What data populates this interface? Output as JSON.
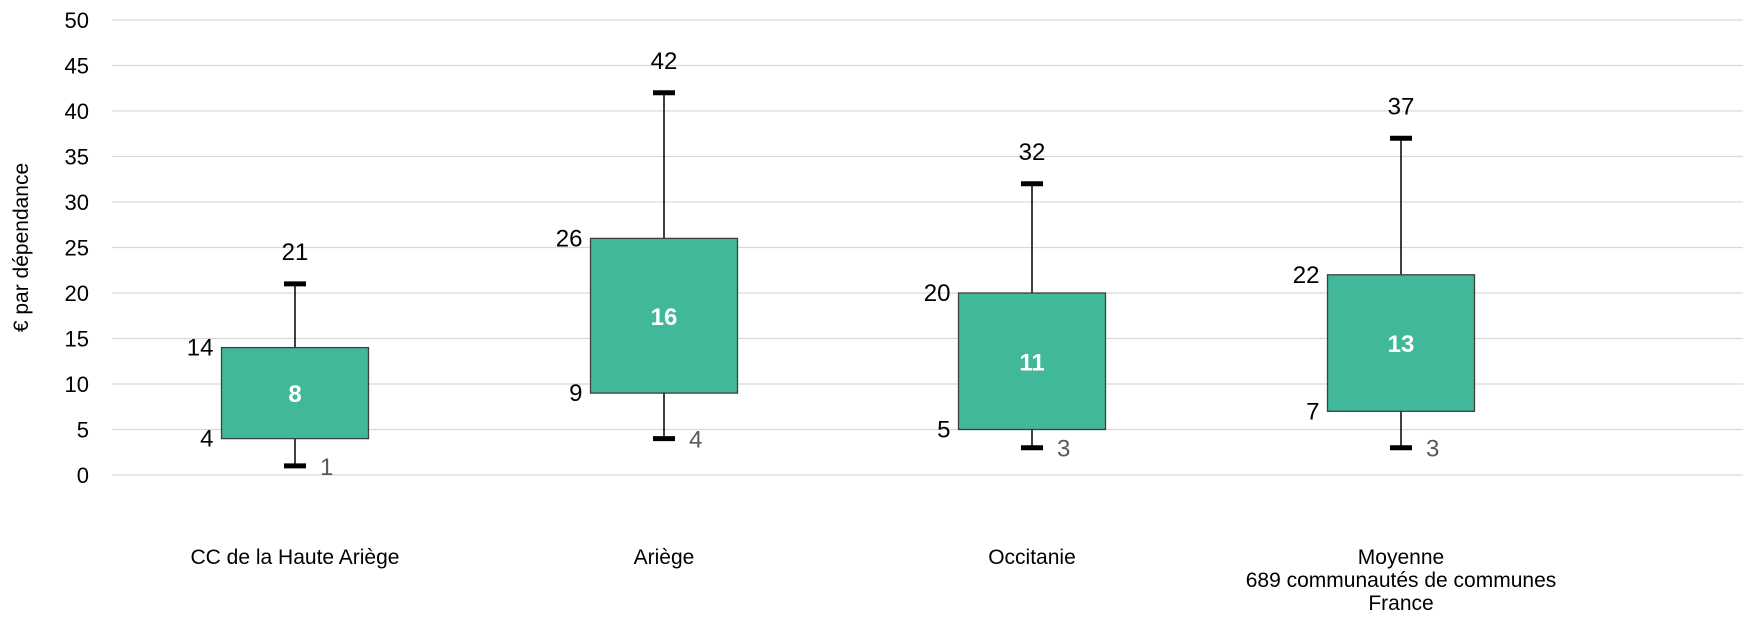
{
  "chart_data": {
    "type": "boxplot",
    "ylabel": "€  par dépendance",
    "ylim": [
      0,
      50
    ],
    "yticks": [
      0,
      5,
      10,
      15,
      20,
      25,
      30,
      35,
      40,
      45,
      50
    ],
    "grid": true,
    "colors": {
      "box": "#41b89a",
      "box_stroke": "#3f3f3f",
      "grid": "#d9d9d9",
      "whisker": "#000000"
    },
    "categories": [
      {
        "label_lines": [
          "CC de la Haute Ariège"
        ],
        "min": 1,
        "q1": 4,
        "median": 8,
        "q3": 14,
        "max": 21
      },
      {
        "label_lines": [
          "Ariège"
        ],
        "min": 4,
        "q1": 9,
        "median": 16,
        "q3": 26,
        "max": 42
      },
      {
        "label_lines": [
          "Occitanie"
        ],
        "min": 3,
        "q1": 5,
        "median": 11,
        "q3": 20,
        "max": 32
      },
      {
        "label_lines": [
          "Moyenne",
          "689 communautés de communes",
          "France"
        ],
        "min": 3,
        "q1": 7,
        "median": 13,
        "q3": 22,
        "max": 37
      }
    ]
  }
}
